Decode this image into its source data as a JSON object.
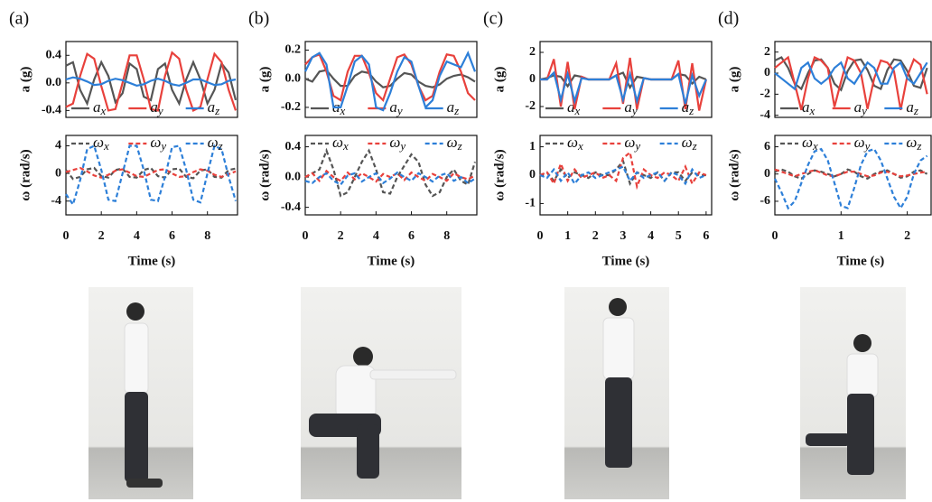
{
  "chart_data": [
    {
      "type": "line",
      "panel_label": "(a)",
      "ylabel": "a (g)",
      "x": [
        0,
        0.4,
        0.8,
        1.2,
        1.6,
        2,
        2.4,
        2.8,
        3.2,
        3.6,
        4,
        4.4,
        4.8,
        5.2,
        5.6,
        6,
        6.4,
        6.8,
        7.2,
        7.6,
        8,
        8.4,
        8.8,
        9.2,
        9.6
      ],
      "xlim": [
        0,
        9.7
      ],
      "ylim": [
        -0.5,
        0.6
      ],
      "yticks": [
        -0.4,
        {
          "value": 0,
          "label": "0.0"
        },
        0.4
      ],
      "series": [
        {
          "name": "ax",
          "color": "#555555",
          "line_style": "solid",
          "values": [
            0.25,
            0.3,
            -0.1,
            -0.3,
            0.05,
            0.3,
            0.1,
            -0.28,
            -0.15,
            0.28,
            0.2,
            -0.2,
            -0.25,
            0.2,
            0.28,
            -0.1,
            -0.3,
            0.05,
            0.3,
            0.05,
            -0.3,
            -0.1,
            0.28,
            0.15,
            -0.25
          ]
        },
        {
          "name": "ay",
          "color": "#e8413c",
          "line_style": "solid",
          "values": [
            -0.35,
            -0.3,
            0.1,
            0.42,
            0.35,
            -0.05,
            -0.4,
            -0.38,
            0.0,
            0.4,
            0.4,
            0.05,
            -0.38,
            -0.4,
            0.1,
            0.44,
            0.35,
            -0.1,
            -0.4,
            -0.35,
            0.05,
            0.42,
            0.3,
            -0.1,
            -0.4
          ]
        },
        {
          "name": "az",
          "color": "#2d7fd8",
          "line_style": "solid",
          "values": [
            0.05,
            0.08,
            0.06,
            0.02,
            -0.03,
            -0.02,
            0.03,
            0.06,
            0.04,
            0.0,
            -0.04,
            -0.02,
            0.03,
            0.06,
            0.03,
            -0.02,
            -0.04,
            0.0,
            0.05,
            0.05,
            0.01,
            -0.03,
            -0.02,
            0.03,
            0.05
          ]
        }
      ]
    },
    {
      "type": "line",
      "ylabel": "ω (rad/s)",
      "xlabel": "Time (s)",
      "x": [
        0,
        0.4,
        0.8,
        1.2,
        1.6,
        2,
        2.4,
        2.8,
        3.2,
        3.6,
        4,
        4.4,
        4.8,
        5.2,
        5.6,
        6,
        6.4,
        6.8,
        7.2,
        7.6,
        8,
        8.4,
        8.8,
        9.2,
        9.6
      ],
      "xlim": [
        0,
        9.7
      ],
      "xticks": [
        0,
        2,
        4,
        6,
        8
      ],
      "ylim": [
        -6,
        5.5
      ],
      "yticks": [
        -4,
        0,
        4
      ],
      "series": [
        {
          "name": "ωx",
          "color": "#555555",
          "line_style": "dashed",
          "values": [
            0.5,
            -0.8,
            -0.5,
            0.6,
            0.8,
            -0.4,
            -0.6,
            0.5,
            0.7,
            -0.5,
            -0.6,
            0.5,
            0.8,
            -0.4,
            -0.6,
            0.6,
            0.7,
            -0.5,
            -0.7,
            0.4,
            0.6,
            -0.5,
            -0.6,
            0.5,
            0.7
          ]
        },
        {
          "name": "ωy",
          "color": "#e8413c",
          "line_style": "dashed",
          "values": [
            0.2,
            0.5,
            0.8,
            0.3,
            -0.3,
            -0.6,
            -0.2,
            0.4,
            0.6,
            0.1,
            -0.4,
            -0.5,
            0,
            0.5,
            0.6,
            0,
            -0.5,
            -0.4,
            0.2,
            0.6,
            0.4,
            -0.2,
            -0.5,
            -0.1,
            0.3
          ]
        },
        {
          "name": "ωz",
          "color": "#2d7fd8",
          "line_style": "dashed",
          "values": [
            -3,
            -4.5,
            -1,
            3.5,
            4,
            0.5,
            -3.8,
            -4,
            0,
            4,
            4,
            0.5,
            -3.8,
            -4,
            -0.5,
            3.8,
            4,
            0.5,
            -3.8,
            -4.2,
            0,
            4,
            3.5,
            -0.5,
            -4
          ]
        }
      ]
    },
    {
      "type": "line",
      "panel_label": "(b)",
      "ylabel": "a (g)",
      "x": [
        0,
        0.4,
        0.8,
        1.2,
        1.6,
        2,
        2.4,
        2.8,
        3.2,
        3.6,
        4,
        4.4,
        4.8,
        5.2,
        5.6,
        6,
        6.4,
        6.8,
        7.2,
        7.6,
        8,
        8.4,
        8.8,
        9.2,
        9.6
      ],
      "xlim": [
        0,
        9.7
      ],
      "ylim": [
        -0.27,
        0.26
      ],
      "yticks": [
        -0.2,
        {
          "value": 0,
          "label": "0.0"
        },
        0.2
      ],
      "series": [
        {
          "name": "ax",
          "color": "#555555",
          "line_style": "solid",
          "values": [
            0,
            -0.02,
            0.05,
            0.06,
            0.0,
            -0.05,
            -0.05,
            0.02,
            0.05,
            0.04,
            -0.02,
            -0.06,
            -0.05,
            0.0,
            0.04,
            0.03,
            -0.02,
            -0.05,
            -0.06,
            -0.04,
            0,
            0.02,
            0.03,
            0.01,
            -0.02
          ]
        },
        {
          "name": "ay",
          "color": "#e8413c",
          "line_style": "solid",
          "values": [
            0.1,
            0.15,
            0.17,
            0.05,
            -0.12,
            -0.15,
            0.05,
            0.16,
            0.16,
            0.04,
            -0.1,
            -0.15,
            0.0,
            0.15,
            0.17,
            0.1,
            -0.05,
            -0.15,
            -0.12,
            0.05,
            0.17,
            0.16,
            0.05,
            -0.1,
            -0.15
          ]
        },
        {
          "name": "az",
          "color": "#2d7fd8",
          "line_style": "solid",
          "values": [
            0.05,
            0.15,
            0.18,
            0.1,
            -0.2,
            -0.2,
            -0.05,
            0.12,
            0.16,
            0.1,
            -0.2,
            -0.22,
            -0.1,
            0.05,
            0.15,
            0.12,
            -0.05,
            -0.2,
            -0.15,
            0.02,
            0.12,
            0.1,
            0.08,
            0.18,
            0.05
          ]
        }
      ]
    },
    {
      "type": "line",
      "ylabel": "ω (rad/s)",
      "xlabel": "Time (s)",
      "x": [
        0,
        0.4,
        0.8,
        1.2,
        1.6,
        2,
        2.4,
        2.8,
        3.2,
        3.6,
        4,
        4.4,
        4.8,
        5.2,
        5.6,
        6,
        6.4,
        6.8,
        7.2,
        7.6,
        8,
        8.4,
        8.8,
        9.2,
        9.6
      ],
      "xlim": [
        0,
        9.7
      ],
      "xticks": [
        0,
        2,
        4,
        6,
        8
      ],
      "ylim": [
        -0.5,
        0.55
      ],
      "yticks": [
        -0.4,
        {
          "value": 0,
          "label": "0.0"
        },
        0.4
      ],
      "series": [
        {
          "name": "ωx",
          "color": "#555555",
          "line_style": "dashed",
          "values": [
            0,
            0.05,
            0.1,
            0.35,
            0.1,
            -0.25,
            -0.2,
            0.0,
            0.2,
            0.35,
            0.1,
            -0.2,
            -0.22,
            0.0,
            0.15,
            0.3,
            0.2,
            -0.1,
            -0.25,
            -0.2,
            0,
            0.1,
            -0.05,
            -0.1,
            0.2
          ]
        },
        {
          "name": "ωy",
          "color": "#e8413c",
          "line_style": "dashed",
          "values": [
            0,
            0.05,
            -0.05,
            0.08,
            0.0,
            -0.05,
            0.06,
            -0.03,
            0.05,
            0.0,
            -0.06,
            0.04,
            0.0,
            0.05,
            -0.04,
            0.06,
            0,
            -0.05,
            0.04,
            0.0,
            -0.05,
            0.05,
            0.0,
            -0.03,
            0.02
          ]
        },
        {
          "name": "ωz",
          "color": "#2d7fd8",
          "line_style": "dashed",
          "values": [
            -0.05,
            -0.08,
            0.0,
            0.05,
            -0.05,
            -0.1,
            0.02,
            0.05,
            -0.06,
            0.0,
            0.05,
            -0.08,
            -0.02,
            0.06,
            0.0,
            -0.05,
            0.05,
            0.0,
            -0.06,
            0.02,
            0.05,
            -0.05,
            0,
            -0.08,
            -0.02
          ]
        }
      ]
    },
    {
      "type": "line",
      "panel_label": "(c)",
      "ylabel": "a (g)",
      "x": [
        0,
        0.25,
        0.5,
        0.75,
        1,
        1.25,
        1.5,
        1.75,
        2,
        2.25,
        2.5,
        2.75,
        3,
        3.25,
        3.5,
        3.75,
        4,
        4.25,
        4.5,
        4.75,
        5,
        5.25,
        5.5,
        5.75,
        6
      ],
      "xlim": [
        0,
        6.2
      ],
      "ylim": [
        -2.8,
        2.8
      ],
      "yticks": [
        -2,
        0,
        2
      ],
      "series": [
        {
          "name": "ax",
          "color": "#555555",
          "line_style": "solid",
          "values": [
            0,
            0.1,
            0.3,
            0.2,
            -0.5,
            0.3,
            0.2,
            0,
            0,
            0,
            0,
            0.3,
            0.5,
            -0.6,
            0.2,
            0.1,
            0,
            0,
            0,
            0,
            0.4,
            0.3,
            -0.3,
            0.2,
            0
          ]
        },
        {
          "name": "ay",
          "color": "#e8413c",
          "line_style": "solid",
          "values": [
            0,
            0,
            1.5,
            -2,
            1.3,
            -2.2,
            0.2,
            0,
            0,
            0,
            0,
            1.2,
            -1.8,
            1.6,
            -2.2,
            0.1,
            0,
            0,
            0,
            0,
            1.4,
            -2.2,
            1.2,
            -2.3,
            0
          ]
        },
        {
          "name": "az",
          "color": "#2d7fd8",
          "line_style": "solid",
          "values": [
            0,
            0,
            0.5,
            -1.5,
            0.4,
            -1.6,
            0.1,
            0,
            0,
            0,
            0,
            0.3,
            -1.5,
            0.4,
            -1.6,
            0.1,
            0,
            0,
            0,
            0,
            0.4,
            -1.8,
            0.3,
            -1.2,
            0
          ]
        }
      ]
    },
    {
      "type": "line",
      "ylabel": "ω (rad/s)",
      "xlabel": "Time (s)",
      "x": [
        0,
        0.25,
        0.5,
        0.75,
        1,
        1.25,
        1.5,
        1.75,
        2,
        2.25,
        2.5,
        2.75,
        3,
        3.25,
        3.5,
        3.75,
        4,
        4.25,
        4.5,
        4.75,
        5,
        5.25,
        5.5,
        5.75,
        6
      ],
      "xlim": [
        0,
        6.2
      ],
      "xticks": [
        0,
        1,
        2,
        3,
        4,
        5,
        6
      ],
      "ylim": [
        -1.4,
        1.4
      ],
      "yticks": [
        -1,
        0,
        1
      ],
      "series": [
        {
          "name": "ωx",
          "color": "#555555",
          "line_style": "dashed",
          "values": [
            0,
            0.1,
            -0.2,
            0.2,
            -0.1,
            0.1,
            0,
            -0.1,
            0.1,
            0,
            0,
            0.2,
            0.5,
            -0.3,
            0.1,
            0,
            -0.1,
            0.1,
            -0.2,
            0.1,
            0.1,
            -0.2,
            0.1,
            0,
            0
          ]
        },
        {
          "name": "ωy",
          "color": "#e8413c",
          "line_style": "dashed",
          "values": [
            0,
            0.1,
            -0.3,
            0.4,
            -0.2,
            0.2,
            -0.1,
            0,
            0.1,
            -0.1,
            0,
            -0.2,
            0.6,
            0.8,
            -0.4,
            0.2,
            0,
            -0.1,
            0.1,
            0,
            -0.2,
            0.3,
            -0.3,
            0.1,
            0
          ]
        },
        {
          "name": "ωz",
          "color": "#2d7fd8",
          "line_style": "dashed",
          "values": [
            0,
            -0.1,
            0.2,
            -0.2,
            0.1,
            -0.3,
            0,
            0.1,
            -0.1,
            0,
            0.1,
            0.2,
            0.3,
            -0.2,
            0.1,
            -0.1,
            0,
            0.1,
            -0.2,
            0.1,
            0,
            -0.3,
            0.2,
            -0.1,
            0
          ]
        }
      ]
    },
    {
      "type": "line",
      "panel_label": "(d)",
      "ylabel": "a (g)",
      "x": [
        0,
        0.1,
        0.2,
        0.3,
        0.4,
        0.5,
        0.6,
        0.7,
        0.8,
        0.9,
        1,
        1.1,
        1.2,
        1.3,
        1.4,
        1.5,
        1.6,
        1.7,
        1.8,
        1.9,
        2,
        2.1,
        2.2,
        2.3
      ],
      "xlim": [
        0,
        2.36
      ],
      "ylim": [
        -4.2,
        3
      ],
      "yticks": [
        -4,
        -2,
        0,
        2
      ],
      "series": [
        {
          "name": "ax",
          "color": "#555555",
          "line_style": "solid",
          "values": [
            1.2,
            1.5,
            0.5,
            -1,
            -1.5,
            0,
            1.2,
            1.3,
            0.5,
            -1,
            -1.6,
            0.2,
            1.2,
            1.3,
            0.3,
            -1.2,
            -1.5,
            0.3,
            1.3,
            1.2,
            0.2,
            -1.2,
            -1.4,
            0.5
          ]
        },
        {
          "name": "ay",
          "color": "#e8413c",
          "line_style": "solid",
          "values": [
            0.5,
            1,
            1.5,
            -1,
            -3.5,
            -0.5,
            1.5,
            1.2,
            0.5,
            -3.2,
            -0.8,
            1.5,
            1.2,
            0,
            -3.4,
            -0.5,
            1.2,
            1,
            0.2,
            -3.5,
            -0.3,
            1.3,
            0.8,
            -2
          ]
        },
        {
          "name": "az",
          "color": "#2d7fd8",
          "line_style": "solid",
          "values": [
            0,
            -0.5,
            -1,
            -1.5,
            0.5,
            1,
            -0.5,
            -1,
            -0.5,
            0.5,
            1,
            -0.5,
            -1,
            0,
            1,
            0.5,
            -1,
            -1,
            0.5,
            1,
            -0.5,
            -1,
            0,
            1
          ]
        }
      ]
    },
    {
      "type": "line",
      "ylabel": "ω (rad/s)",
      "xlabel": "Time (s)",
      "x": [
        0,
        0.1,
        0.2,
        0.3,
        0.4,
        0.5,
        0.6,
        0.7,
        0.8,
        0.9,
        1,
        1.1,
        1.2,
        1.3,
        1.4,
        1.5,
        1.6,
        1.7,
        1.8,
        1.9,
        2,
        2.1,
        2.2,
        2.3
      ],
      "xlim": [
        0,
        2.36
      ],
      "xticks": [
        0,
        1,
        2
      ],
      "ylim": [
        -9,
        8.5
      ],
      "yticks": [
        -6,
        0,
        6
      ],
      "series": [
        {
          "name": "ωx",
          "color": "#555555",
          "line_style": "dashed",
          "values": [
            0.5,
            1,
            0.5,
            -0.5,
            -1,
            0,
            0.8,
            0.5,
            0,
            -0.5,
            0,
            1,
            0.5,
            -0.5,
            -1,
            0,
            0.5,
            0.8,
            0,
            -0.8,
            -0.5,
            0.5,
            0.8,
            0
          ]
        },
        {
          "name": "ωy",
          "color": "#e8413c",
          "line_style": "dashed",
          "values": [
            1,
            0.5,
            0,
            -0.5,
            0,
            0.5,
            0.8,
            0.3,
            -0.3,
            -0.5,
            0,
            0.5,
            0.5,
            0,
            -0.5,
            -0.3,
            0.3,
            0.5,
            0,
            -0.5,
            -0.3,
            0,
            0.3,
            0.5
          ]
        },
        {
          "name": "ωz",
          "color": "#2d7fd8",
          "line_style": "dashed",
          "values": [
            -1,
            -4,
            -7.5,
            -6,
            -2,
            2,
            5,
            5.5,
            3,
            -2,
            -7,
            -7.5,
            -3,
            2,
            5,
            5.5,
            3,
            -1,
            -5,
            -7.5,
            -5,
            0,
            3,
            4
          ]
        }
      ]
    }
  ]
}
